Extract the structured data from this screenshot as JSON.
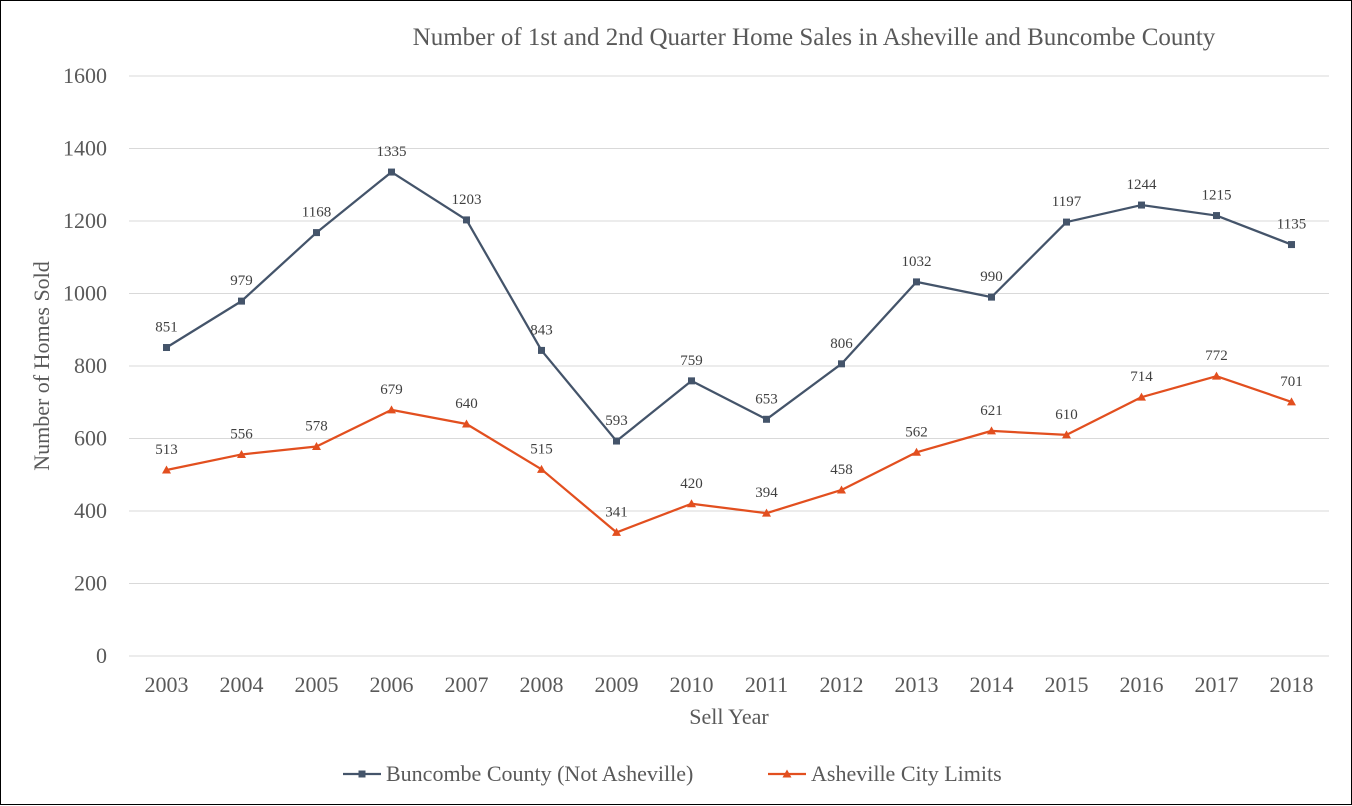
{
  "chart_data": {
    "type": "line",
    "title": "Number of 1st and 2nd Quarter Home Sales in Asheville and Buncombe County",
    "xlabel": "Sell Year",
    "ylabel": "Number of Homes Sold",
    "ylim": [
      0,
      1600
    ],
    "yticks": [
      "0",
      "200",
      "400",
      "600",
      "800",
      "1000",
      "1200",
      "1400",
      "1600"
    ],
    "grid": true,
    "legend_position": "bottom",
    "categories": [
      "2003",
      "2004",
      "2005",
      "2006",
      "2007",
      "2008",
      "2009",
      "2010",
      "2011",
      "2012",
      "2013",
      "2014",
      "2015",
      "2016",
      "2017",
      "2018"
    ],
    "series": [
      {
        "name": "Buncombe County (Not Asheville)",
        "color": "#44546a",
        "marker": "square",
        "values": [
          851,
          979,
          1168,
          1335,
          1203,
          843,
          593,
          759,
          653,
          806,
          1032,
          990,
          1197,
          1244,
          1215,
          1135
        ]
      },
      {
        "name": "Asheville City Limits",
        "color": "#e24f1f",
        "marker": "triangle",
        "values": [
          513,
          556,
          578,
          679,
          640,
          515,
          341,
          420,
          394,
          458,
          562,
          621,
          610,
          714,
          772,
          701
        ]
      }
    ]
  }
}
